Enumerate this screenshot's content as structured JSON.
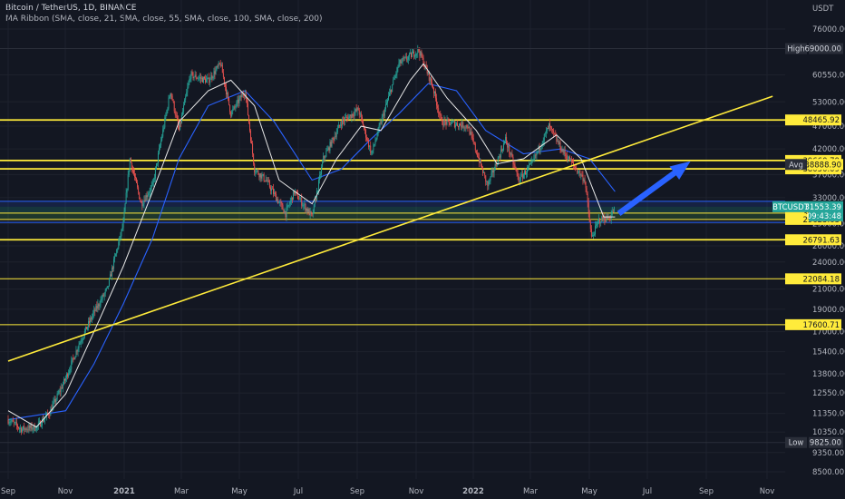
{
  "header": {
    "symbol_line": "Bitcoin / TetherUS, 1D, BINANCE",
    "indicator_line": "MA Ribbon (SMA, close, 21, SMA, close, 55, SMA, close, 100, SMA, close, 200)"
  },
  "chart_data": {
    "type": "candlestick",
    "currency": "USDT",
    "x_ticks": [
      "Sep",
      "Nov",
      "2021",
      "Mar",
      "May",
      "Jul",
      "Sep",
      "Nov",
      "2022",
      "Mar",
      "May",
      "Jul",
      "Sep",
      "Nov"
    ],
    "y_ticks": [
      "76000.00",
      "60550.00",
      "53000.00",
      "47000.00",
      "42000.00",
      "37000.00",
      "33000.00",
      "29000.00",
      "26000.00",
      "24000.00",
      "21000.00",
      "19000.00",
      "17000.00",
      "15400.00",
      "13800.00",
      "12550.00",
      "11350.00",
      "10350.00",
      "9350.00",
      "8500.00"
    ],
    "high": {
      "label": "High",
      "value": "69000.00"
    },
    "low": {
      "label": "Low",
      "value": "9825.00"
    },
    "avg": {
      "label": "Avg",
      "value": "38888.90"
    },
    "current": {
      "symbol": "BTCUSDT",
      "price": "31553.39",
      "countdown": "09:43:48"
    },
    "levels": [
      "48465.92",
      "39660.79",
      "38050.09",
      "30573.07",
      "29625.63",
      "26791.63",
      "22084.18",
      "17600.71"
    ],
    "price_series": [
      [
        "2020-09-01",
        11000
      ],
      [
        "2020-09-15",
        10500
      ],
      [
        "2020-10-01",
        10600
      ],
      [
        "2020-10-15",
        11400
      ],
      [
        "2020-11-01",
        13500
      ],
      [
        "2020-11-15",
        16000
      ],
      [
        "2020-12-01",
        18700
      ],
      [
        "2020-12-15",
        21000
      ],
      [
        "2021-01-01",
        29000
      ],
      [
        "2021-01-08",
        40000
      ],
      [
        "2021-01-20",
        32000
      ],
      [
        "2021-02-01",
        35000
      ],
      [
        "2021-02-20",
        56000
      ],
      [
        "2021-03-01",
        46000
      ],
      [
        "2021-03-13",
        60500
      ],
      [
        "2021-04-01",
        58800
      ],
      [
        "2021-04-14",
        64000
      ],
      [
        "2021-04-25",
        50000
      ],
      [
        "2021-05-10",
        56000
      ],
      [
        "2021-05-20",
        38000
      ],
      [
        "2021-06-01",
        36000
      ],
      [
        "2021-06-22",
        30500
      ],
      [
        "2021-07-01",
        34000
      ],
      [
        "2021-07-20",
        30000
      ],
      [
        "2021-08-01",
        40000
      ],
      [
        "2021-08-20",
        48000
      ],
      [
        "2021-09-07",
        51000
      ],
      [
        "2021-09-21",
        41000
      ],
      [
        "2021-10-01",
        48000
      ],
      [
        "2021-10-20",
        64000
      ],
      [
        "2021-11-10",
        68500
      ],
      [
        "2021-11-25",
        57000
      ],
      [
        "2021-12-04",
        48000
      ],
      [
        "2021-12-20",
        47500
      ],
      [
        "2022-01-01",
        47000
      ],
      [
        "2022-01-22",
        35000
      ],
      [
        "2022-02-10",
        44000
      ],
      [
        "2022-02-24",
        36000
      ],
      [
        "2022-03-10",
        39000
      ],
      [
        "2022-03-28",
        47000
      ],
      [
        "2022-04-10",
        42000
      ],
      [
        "2022-04-26",
        38000
      ],
      [
        "2022-05-05",
        36000
      ],
      [
        "2022-05-12",
        27000
      ],
      [
        "2022-05-20",
        29500
      ],
      [
        "2022-06-01",
        30000
      ],
      [
        "2022-06-06",
        31553
      ]
    ],
    "ma_21": [
      [
        "2020-09-01",
        11500
      ],
      [
        "2020-10-01",
        10600
      ],
      [
        "2020-11-01",
        12500
      ],
      [
        "2020-12-01",
        17000
      ],
      [
        "2021-01-01",
        23500
      ],
      [
        "2021-02-01",
        34000
      ],
      [
        "2021-03-01",
        48000
      ],
      [
        "2021-04-01",
        56000
      ],
      [
        "2021-04-25",
        59000
      ],
      [
        "2021-05-20",
        52000
      ],
      [
        "2021-06-15",
        36000
      ],
      [
        "2021-07-20",
        32000
      ],
      [
        "2021-08-15",
        40000
      ],
      [
        "2021-09-10",
        47000
      ],
      [
        "2021-10-01",
        46000
      ],
      [
        "2021-11-01",
        59000
      ],
      [
        "2021-11-15",
        64000
      ],
      [
        "2021-12-10",
        54000
      ],
      [
        "2022-01-10",
        46000
      ],
      [
        "2022-02-01",
        39000
      ],
      [
        "2022-03-01",
        40000
      ],
      [
        "2022-04-05",
        45000
      ],
      [
        "2022-05-01",
        40000
      ],
      [
        "2022-05-25",
        30000
      ],
      [
        "2022-06-06",
        30000
      ]
    ],
    "ma_55": [
      [
        "2020-09-01",
        11000
      ],
      [
        "2020-11-01",
        11500
      ],
      [
        "2020-12-01",
        14500
      ],
      [
        "2021-01-01",
        19500
      ],
      [
        "2021-02-01",
        27000
      ],
      [
        "2021-03-01",
        40000
      ],
      [
        "2021-04-01",
        52000
      ],
      [
        "2021-05-10",
        56000
      ],
      [
        "2021-06-10",
        48000
      ],
      [
        "2021-07-20",
        36000
      ],
      [
        "2021-08-20",
        38000
      ],
      [
        "2021-09-20",
        44000
      ],
      [
        "2021-10-20",
        50000
      ],
      [
        "2021-11-20",
        58000
      ],
      [
        "2021-12-20",
        56000
      ],
      [
        "2022-01-20",
        46000
      ],
      [
        "2022-03-01",
        41000
      ],
      [
        "2022-04-10",
        42000
      ],
      [
        "2022-05-10",
        40000
      ],
      [
        "2022-06-06",
        34000
      ]
    ],
    "trendline": [
      [
        "2020-09-01",
        14700
      ],
      [
        "2022-11-20",
        54500
      ]
    ],
    "arrow": {
      "from": [
        "2022-06-10",
        30500
      ],
      "to": [
        "2022-08-25",
        39500
      ]
    }
  }
}
